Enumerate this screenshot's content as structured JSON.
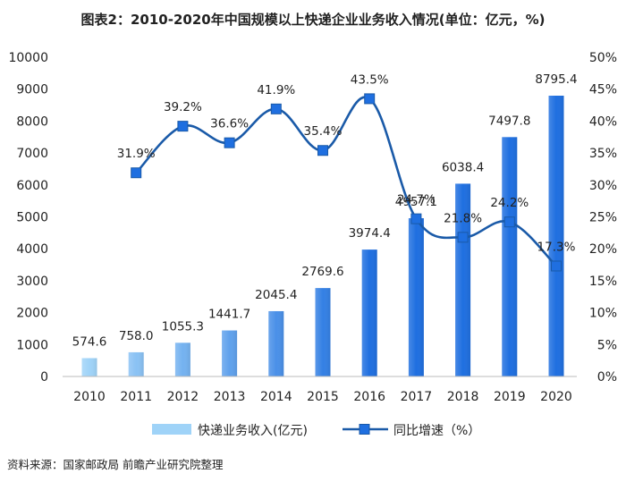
{
  "chart_data": {
    "type": "bar+line",
    "title": "图表2：2010-2020年中国规模以上快递企业业务收入情况(单位：亿元，%)",
    "categories": [
      "2010",
      "2011",
      "2012",
      "2013",
      "2014",
      "2015",
      "2016",
      "2017",
      "2018",
      "2019",
      "2020"
    ],
    "series": [
      {
        "name": "快递业务收入(亿元)",
        "type": "bar",
        "axis": "left",
        "values": [
          574.6,
          758.0,
          1055.3,
          1441.7,
          2045.4,
          2769.6,
          3974.4,
          4957.1,
          6038.4,
          7497.8,
          8795.4
        ],
        "value_labels": [
          "574.6",
          "758.0",
          "1055.3",
          "1441.7",
          "2045.4",
          "2769.6",
          "3974.4",
          "4957.1",
          "6038.4",
          "7497.8",
          "8795.4"
        ]
      },
      {
        "name": "同比增速（%）",
        "type": "line",
        "axis": "right",
        "values": [
          null,
          31.9,
          39.2,
          36.6,
          41.9,
          35.4,
          43.5,
          24.7,
          21.8,
          24.2,
          17.3
        ],
        "value_labels": [
          "",
          "31.9%",
          "39.2%",
          "36.6%",
          "41.9%",
          "35.4%",
          "43.5%",
          "24.7%",
          "21.8%",
          "24.2%",
          "17.3%"
        ]
      }
    ],
    "left_axis": {
      "min": 0,
      "max": 10000,
      "step": 1000,
      "ticks": [
        "0",
        "1000",
        "2000",
        "3000",
        "4000",
        "5000",
        "6000",
        "7000",
        "8000",
        "9000",
        "10000"
      ]
    },
    "right_axis": {
      "min": 0,
      "max": 50,
      "step": 5,
      "ticks": [
        "0%",
        "5%",
        "10%",
        "15%",
        "20%",
        "25%",
        "30%",
        "35%",
        "40%",
        "45%",
        "50%"
      ]
    },
    "grid": false,
    "legend_position": "bottom-center"
  },
  "source": "资料来源：国家邮政局 前瞻产业研究院整理",
  "colors": {
    "bar_light": "#9fd3f8",
    "bar_dark": "#1f6fe0",
    "line": "#1a5aa8",
    "marker": "#1f6fe0",
    "axis": "#bbbbbb"
  }
}
